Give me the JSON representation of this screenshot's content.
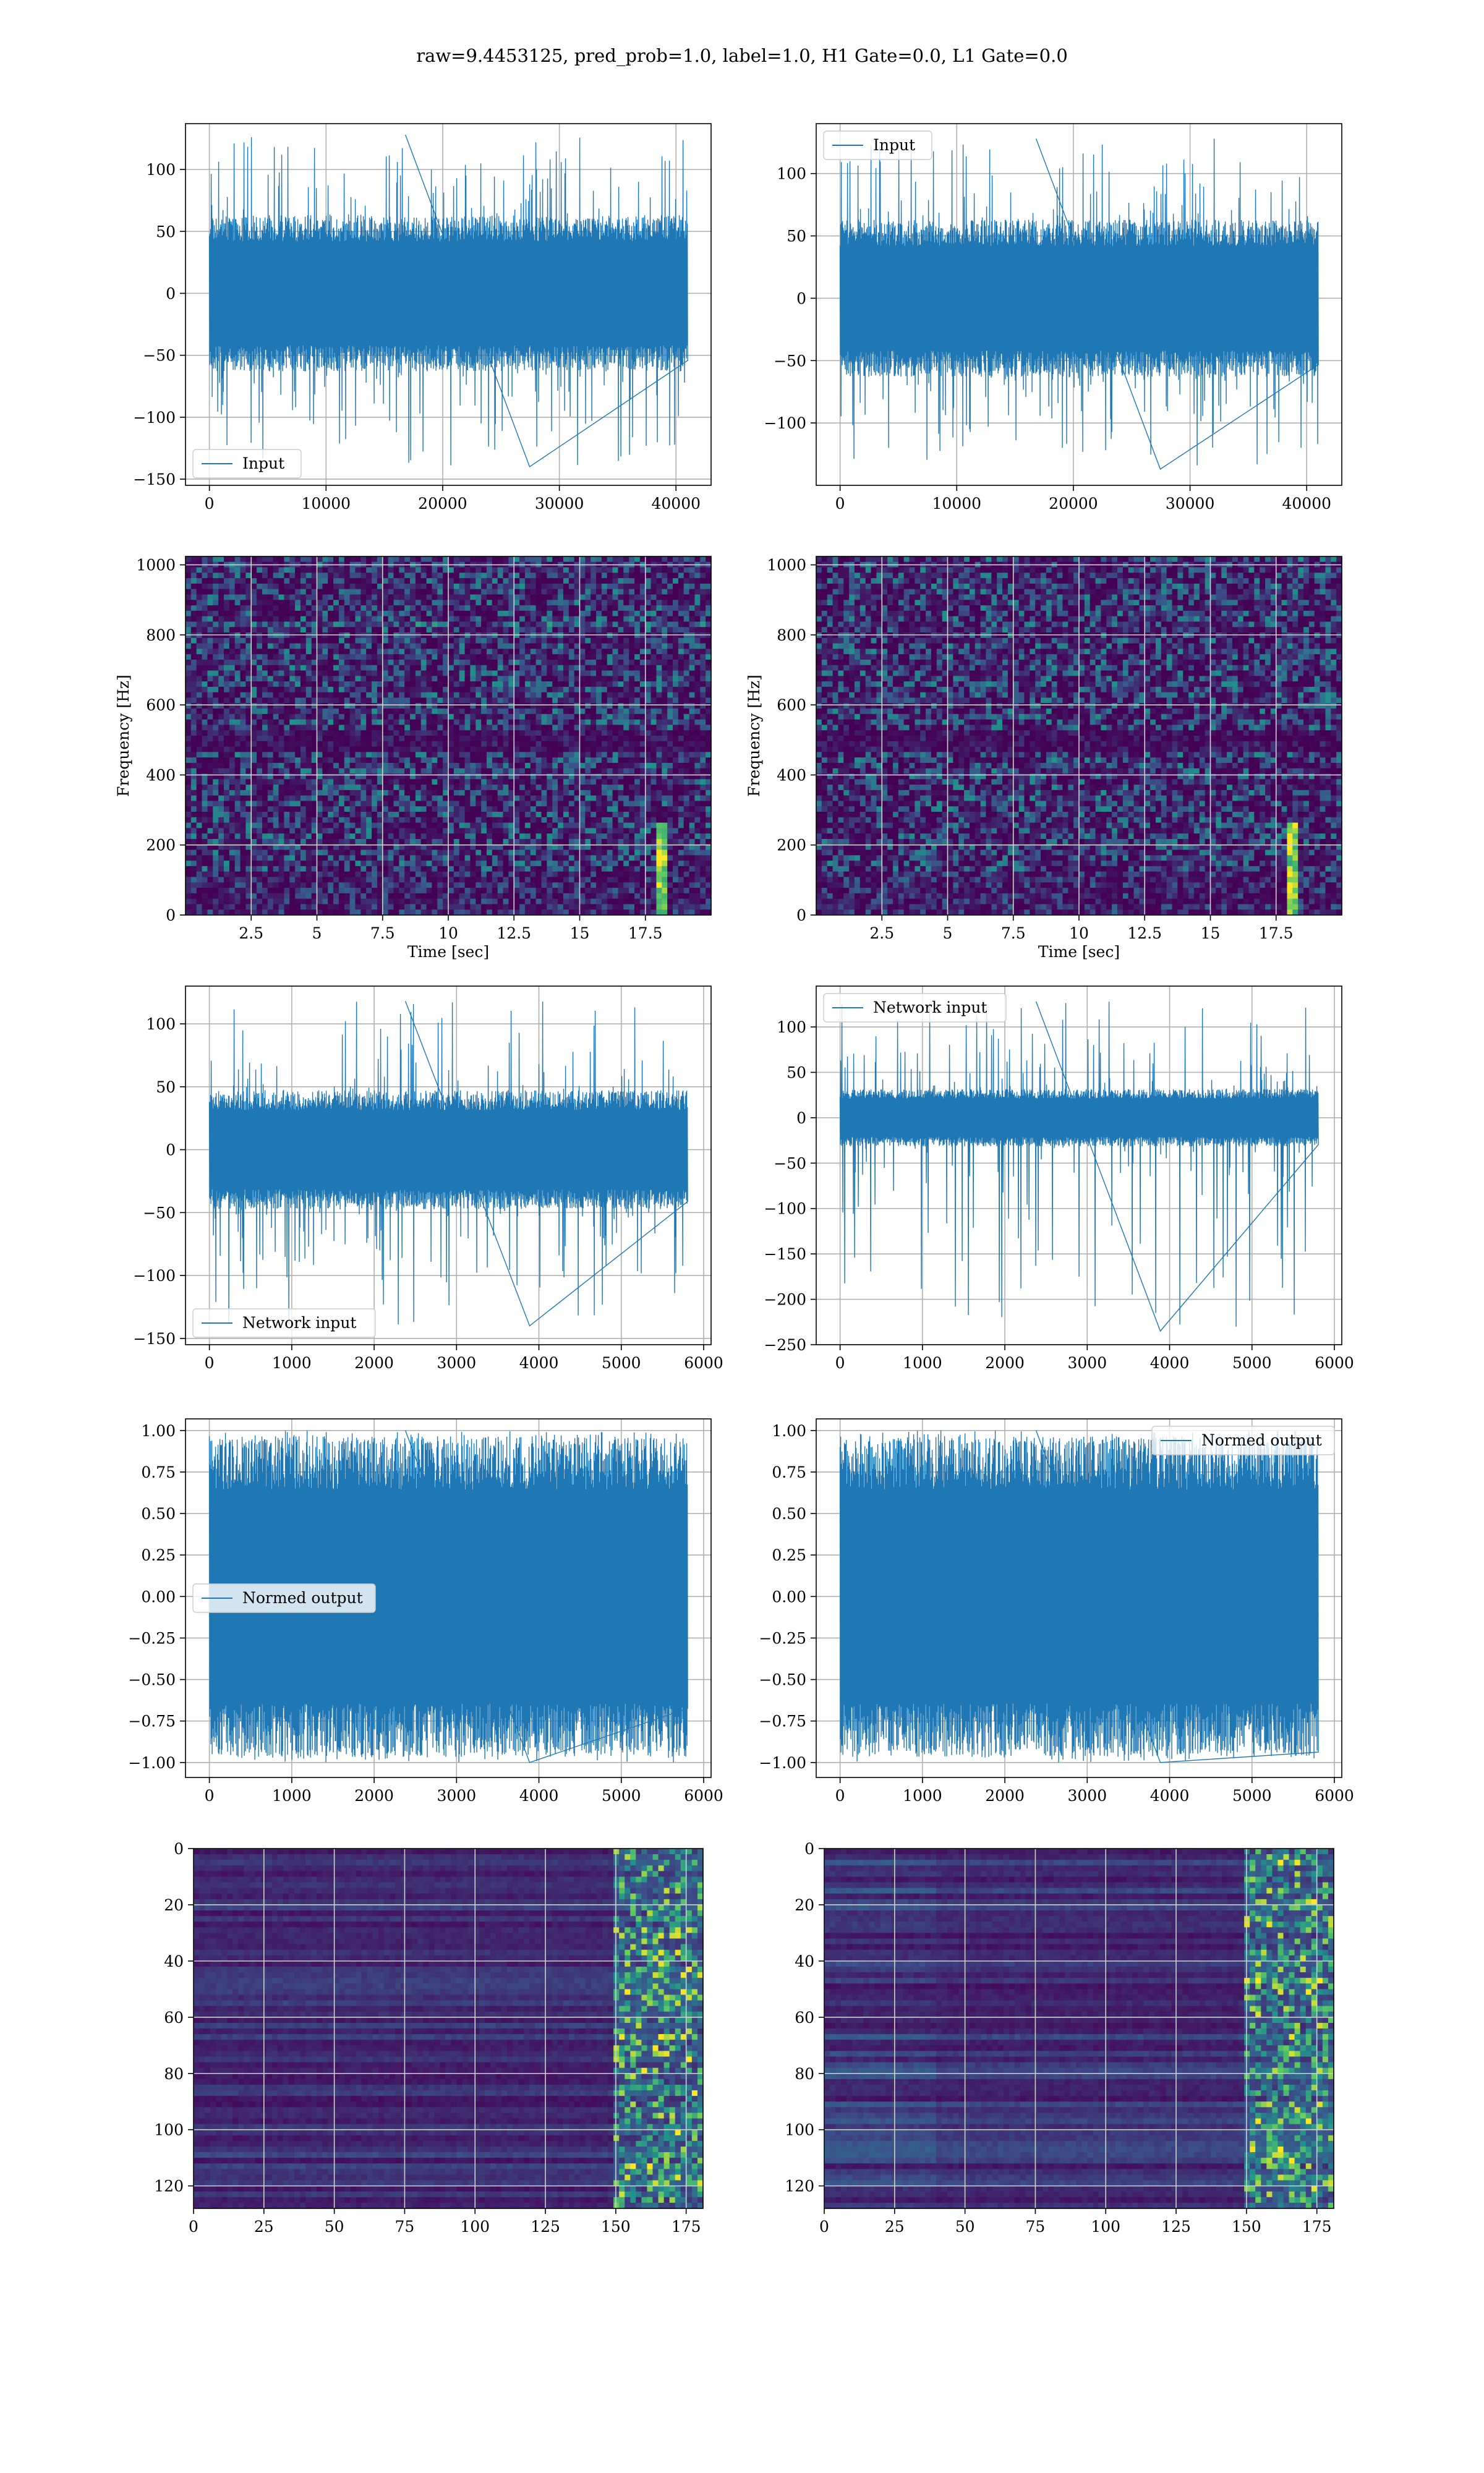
{
  "figure": {
    "title": "raw=9.4453125, pred_prob=1.0, label=1.0, H1 Gate=0.0, L1 Gate=0.0"
  },
  "colors": {
    "line": "#1f77b4",
    "viridis_low": "#440154",
    "viridis_mid": "#21918c",
    "viridis_high": "#fde725",
    "grid": "#b0b0b0",
    "grid_on_image": "#cfcfcf"
  },
  "chart_data": [
    {
      "type": "line",
      "id": "r1c1",
      "series": [
        {
          "name": "Input",
          "n": 40960,
          "y_range": [
            -140,
            128
          ],
          "band": [
            -60,
            60
          ]
        }
      ],
      "xlim": [
        -2048,
        43008
      ],
      "ylim": [
        -155,
        137
      ],
      "xticks": [
        0,
        10000,
        20000,
        30000,
        40000
      ],
      "yticks": [
        -150,
        -100,
        -50,
        0,
        50,
        100
      ],
      "legend": "lower-left",
      "grid": true,
      "xlabel": "",
      "ylabel": ""
    },
    {
      "type": "line",
      "id": "r1c2",
      "series": [
        {
          "name": "Input",
          "n": 40960,
          "y_range": [
            -137,
            128
          ],
          "band": [
            -60,
            60
          ]
        }
      ],
      "xlim": [
        -2048,
        43008
      ],
      "ylim": [
        -150,
        140
      ],
      "xticks": [
        0,
        10000,
        20000,
        30000,
        40000
      ],
      "yticks": [
        -100,
        -50,
        0,
        50,
        100
      ],
      "legend": "upper-left",
      "grid": true,
      "xlabel": "",
      "ylabel": ""
    },
    {
      "type": "heatmap",
      "id": "r2c1",
      "xlim": [
        0,
        20
      ],
      "ylim": [
        0,
        1024
      ],
      "xticks": [
        2.5,
        5.0,
        7.5,
        10.0,
        12.5,
        15.0,
        17.5
      ],
      "yticks": [
        0,
        200,
        400,
        600,
        800,
        1000
      ],
      "xlabel": "Time [sec]",
      "ylabel": "Frequency [Hz]",
      "colormap": "viridis",
      "grid": true,
      "features": [
        "faint horizontal line near 830 Hz",
        "dark band near 500 Hz",
        "bright vertical streak near t=18.2 s"
      ]
    },
    {
      "type": "heatmap",
      "id": "r2c2",
      "xlim": [
        0,
        20
      ],
      "ylim": [
        0,
        1024
      ],
      "xticks": [
        2.5,
        5.0,
        7.5,
        10.0,
        12.5,
        15.0,
        17.5
      ],
      "yticks": [
        0,
        200,
        400,
        600,
        800,
        1000
      ],
      "xlabel": "Time [sec]",
      "ylabel": "Frequency [Hz]",
      "colormap": "viridis",
      "grid": true,
      "features": [
        "dark band near 500 Hz",
        "bright vertical streak near t=18.2 s"
      ]
    },
    {
      "type": "line",
      "id": "r3c1",
      "series": [
        {
          "name": "Network input",
          "n": 5800,
          "y_range": [
            -140,
            118
          ],
          "band": [
            -45,
            45
          ]
        }
      ],
      "xlim": [
        -290,
        6090
      ],
      "ylim": [
        -155,
        130
      ],
      "xticks": [
        0,
        1000,
        2000,
        3000,
        4000,
        5000,
        6000
      ],
      "yticks": [
        -150,
        -100,
        -50,
        0,
        50,
        100
      ],
      "legend": "lower-left",
      "grid": true,
      "xlabel": "",
      "ylabel": ""
    },
    {
      "type": "line",
      "id": "r3c2",
      "series": [
        {
          "name": "Network input",
          "n": 5800,
          "y_range": [
            -235,
            128
          ],
          "band": [
            -30,
            30
          ]
        }
      ],
      "xlim": [
        -290,
        6090
      ],
      "ylim": [
        -250,
        145
      ],
      "xticks": [
        0,
        1000,
        2000,
        3000,
        4000,
        5000,
        6000
      ],
      "yticks": [
        -250,
        -200,
        -150,
        -100,
        -50,
        0,
        50,
        100
      ],
      "legend": "upper-left",
      "grid": true,
      "xlabel": "",
      "ylabel": ""
    },
    {
      "type": "line",
      "id": "r4c1",
      "series": [
        {
          "name": "Normed output",
          "n": 5800,
          "y_range": [
            -1.0,
            1.0
          ],
          "band": [
            -0.92,
            0.92
          ]
        }
      ],
      "xlim": [
        -290,
        6090
      ],
      "ylim": [
        -1.09,
        1.07
      ],
      "xticks": [
        0,
        1000,
        2000,
        3000,
        4000,
        5000,
        6000
      ],
      "yticks": [
        -1.0,
        -0.75,
        -0.5,
        -0.25,
        0.0,
        0.25,
        0.5,
        0.75,
        1.0
      ],
      "yticklabels": [
        "−1.00",
        "−0.75",
        "−0.50",
        "−0.25",
        "0.00",
        "0.25",
        "0.50",
        "0.75",
        "1.00"
      ],
      "legend": "center-left",
      "grid": true,
      "xlabel": "",
      "ylabel": ""
    },
    {
      "type": "line",
      "id": "r4c2",
      "series": [
        {
          "name": "Normed output",
          "n": 5800,
          "y_range": [
            -1.0,
            1.0
          ],
          "band": [
            -0.92,
            0.92
          ]
        }
      ],
      "xlim": [
        -290,
        6090
      ],
      "ylim": [
        -1.09,
        1.07
      ],
      "xticks": [
        0,
        1000,
        2000,
        3000,
        4000,
        5000,
        6000
      ],
      "yticks": [
        -1.0,
        -0.75,
        -0.5,
        -0.25,
        0.0,
        0.25,
        0.5,
        0.75,
        1.0
      ],
      "yticklabels": [
        "−1.00",
        "−0.75",
        "−0.50",
        "−0.25",
        "0.00",
        "0.25",
        "0.50",
        "0.75",
        "1.00"
      ],
      "legend": "upper-right",
      "grid": true,
      "xlabel": "",
      "ylabel": ""
    },
    {
      "type": "heatmap",
      "id": "r5c1",
      "xlim": [
        0,
        181
      ],
      "ylim": [
        128,
        0
      ],
      "xticks": [
        0,
        25,
        50,
        75,
        100,
        125,
        150,
        175
      ],
      "yticks": [
        0,
        20,
        40,
        60,
        80,
        100,
        120
      ],
      "colormap": "viridis",
      "grid": true,
      "xlabel": "",
      "ylabel": "",
      "features": [
        "bright activations concentrated in columns 150–181"
      ]
    },
    {
      "type": "heatmap",
      "id": "r5c2",
      "xlim": [
        0,
        181
      ],
      "ylim": [
        128,
        0
      ],
      "xticks": [
        0,
        25,
        50,
        75,
        100,
        125,
        150,
        175
      ],
      "yticks": [
        0,
        20,
        40,
        60,
        80,
        100,
        120
      ],
      "colormap": "viridis",
      "grid": true,
      "xlabel": "",
      "ylabel": "",
      "features": [
        "bright activations concentrated in columns 150–181"
      ]
    }
  ]
}
